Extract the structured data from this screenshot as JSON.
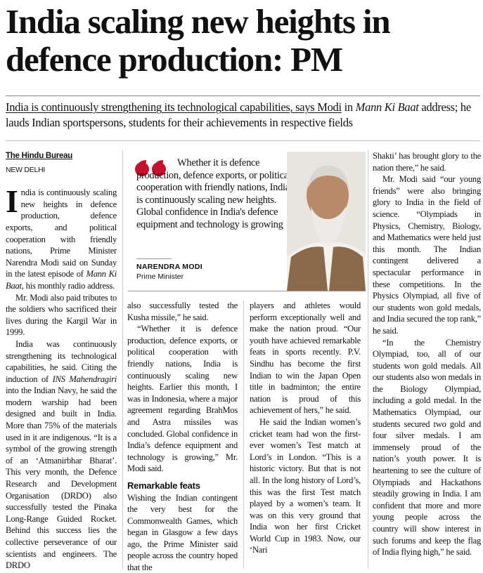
{
  "headline": "India scaling new heights in defence production: PM",
  "subhead": [
    {
      "text": "India is continuously strengthening its technological capabilities, says Modi",
      "underline": true
    },
    {
      "text": " in "
    },
    {
      "text": "Mann Ki Baat",
      "italic": true
    },
    {
      "text": " address; he lauds Indian sportspersons, students for their achievements in respective fields"
    }
  ],
  "byline": {
    "organisation": "The Hindu Bureau",
    "dateline": "NEW DELHI"
  },
  "pull_quote": {
    "text": "Whether it is defence production, defence exports, or political cooperation with friendly nations, India is continuously scaling new heights. Global confidence in India's defence equipment and technology is growing",
    "name": "NARENDRA MODI",
    "role": "Prime Minister"
  },
  "columns": [
    {
      "blocks": [
        {
          "drop_cap": "I",
          "runs": [
            {
              "text": "ndia is continuously scaling new heights in defence production, defence exports, and political cooperation with friendly nations, Prime Minister Narendra Modi said on Sunday in the latest episode of "
            },
            {
              "text": "Mann Ki Baat",
              "italic": true
            },
            {
              "text": ", his monthly radio address."
            }
          ]
        },
        {
          "runs": [
            {
              "text": "Mr. Modi also paid tributes to the soldiers who sacrificed their lives during the Kargil War in 1999."
            }
          ]
        },
        {
          "runs": [
            {
              "text": "India was continuously strengthening its technological capabilities, he said. Citing the induction of "
            },
            {
              "text": "INS Mahendragiri",
              "italic": true
            },
            {
              "text": " into the Indian Navy, he said the modern warship had been designed and built in India. More than 75% of the materials used in it are indigenous. “It is a symbol of the growing strength of an ‘Atmanirbhar Bharat’. This very month, the Defence Research and Development Organisation (DRDO) also successfully tested the Pinaka Long-Range Guided Rocket. Behind this success lies the collective perseverance of our scientists and engineers. The DRDO"
            }
          ]
        }
      ]
    },
    {
      "blocks": [
        {
          "continued": true,
          "runs": [
            {
              "text": "also successfully tested the Kusha missile,” he said."
            }
          ]
        },
        {
          "runs": [
            {
              "text": "“Whether it is defence production, defence exports, or political cooperation with friendly nations, India is continuously scaling new heights. Earlier this month, I was in Indonesia, where a major agreement regarding BrahMos and Astra missiles was concluded. Global confidence in India’s defence equipment and technology is growing,” Mr. Modi said."
            }
          ]
        },
        {
          "heading": "Remarkable feats"
        },
        {
          "continued": true,
          "runs": [
            {
              "text": "Wishing the Indian contingent the very best for the Commonwealth Games, which began in Glasgow a few days ago, the Prime Minister said people across the country hoped that the"
            }
          ]
        }
      ]
    },
    {
      "blocks": [
        {
          "continued": true,
          "runs": [
            {
              "text": "players and athletes would perform exceptionally well and make the nation proud. “Our youth have achieved remarkable feats in sports recently. P.V. Sindhu has become the first Indian to win the Japan Open title in badminton; the entire nation is proud of this achievement of hers,” he said."
            }
          ]
        },
        {
          "runs": [
            {
              "text": "He said the Indian women’s cricket team had won the first-ever women’s Test match at Lord’s in London. “This is a historic victory. But that is not all. In the long history of Lord’s, this was the first Test match played by a women’s team. It was on this very ground that India won her first Cricket World Cup in 1983. Now, our ‘Nari"
            }
          ]
        }
      ]
    },
    {
      "blocks": [
        {
          "continued": true,
          "runs": [
            {
              "text": "Shakti’ has brought glory to the nation there,” he said."
            }
          ]
        },
        {
          "runs": [
            {
              "text": "Mr. Modi said “our young friends” were also bringing glory to India in the field of science. “Olympiads in Physics, Chemistry, Biology, and Mathematics were held just this month. The Indian contingent delivered a spectacular performance in these competitions. In the Physics Olympiad, all five of our students won gold medals, and India secured the top rank,” he said."
            }
          ]
        },
        {
          "runs": [
            {
              "text": "“In the Chemistry Olympiad, too, all of our students won gold medals. All our students also won medals in the Biology Olympiad, including a gold medal. In the Mathematics Olympiad, our students secured two gold and four silver medals. I am immensely proud of the nation’s youth power. It is heartening to see the culture of Olympiads and Hackathons steadily growing in India. I am confident that more and more young people across the country will show interest in such forums and keep the flag of India flying high,” he said."
            }
          ]
        }
      ]
    }
  ]
}
